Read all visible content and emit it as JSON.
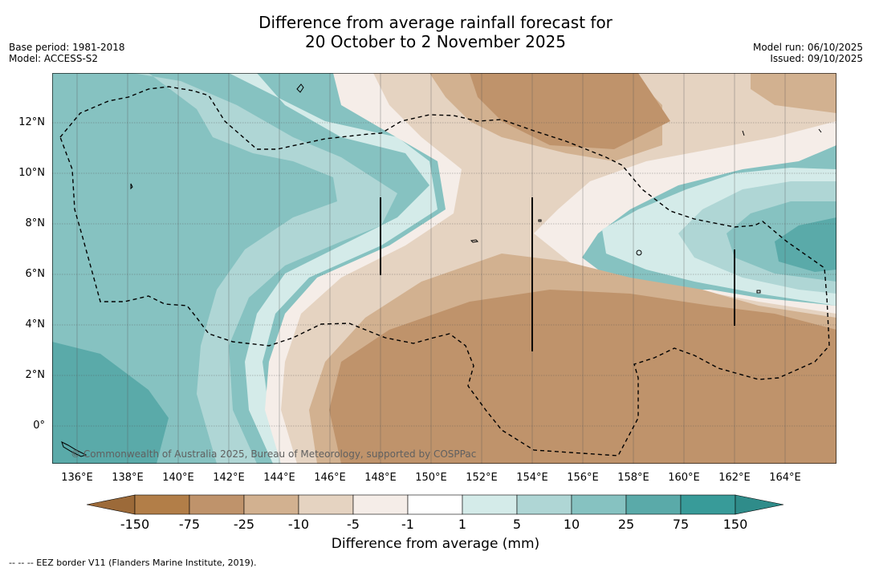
{
  "title_line1": "Difference from average rainfall forecast for",
  "title_line2": "20 October to 2 November 2025",
  "base_period": "Base period: 1981-2018",
  "model": "Model: ACCESS-S2",
  "model_run": "Model run: 06/10/2025",
  "issued": "Issued: 09/10/2025",
  "lon_labels": [
    "136°E",
    "138°E",
    "140°E",
    "142°E",
    "144°E",
    "146°E",
    "148°E",
    "150°E",
    "152°E",
    "154°E",
    "156°E",
    "158°E",
    "160°E",
    "162°E",
    "164°E"
  ],
  "lat_labels": [
    "12°N",
    "10°N",
    "8°N",
    "6°N",
    "4°N",
    "2°N",
    "0°"
  ],
  "colorbar": {
    "title": "Difference from average (mm)",
    "labels": [
      "-150",
      "-75",
      "-25",
      "-10",
      "-5",
      "-1",
      "1",
      "5",
      "10",
      "25",
      "75",
      "150"
    ],
    "colors": [
      "#b27e48",
      "#bf936b",
      "#d2b190",
      "#e5d3c1",
      "#f5ede8",
      "#ffffff",
      "#d4ebe9",
      "#afd6d5",
      "#86c2c1",
      "#5aaaa9",
      "#389b99"
    ],
    "under_color": "#9c6a39",
    "over_color": "#2f8c8a"
  },
  "copyright": "© Commonwealth of Australia 2025, Bureau of Meteorology, supported by COSPPac",
  "footnote": "-- -- -- EEZ border V11 (Flanders Marine Institute, 2019)."
}
